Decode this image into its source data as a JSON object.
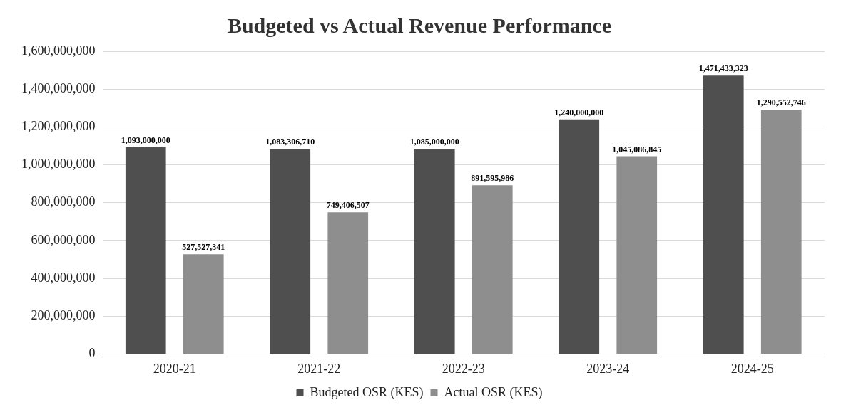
{
  "chart_data": {
    "type": "bar",
    "title": "Budgeted vs Actual Revenue Performance",
    "categories": [
      "2020-21",
      "2021-22",
      "2022-23",
      "2023-24",
      "2024-25"
    ],
    "series": [
      {
        "name": "Budgeted OSR (KES)",
        "color": "#4f4f4f",
        "values": [
          1093000000,
          1083306710,
          1085000000,
          1240000000,
          1471433323
        ],
        "value_labels": [
          "1,093,000,000",
          "1,083,306,710",
          "1,085,000,000",
          "1,240,000,000",
          "1,471,433,323"
        ]
      },
      {
        "name": "Actual OSR (KES)",
        "color": "#8e8e8e",
        "values": [
          527527341,
          749406507,
          891595986,
          1045086845,
          1290552746
        ],
        "value_labels": [
          "527,527,341",
          "749,406,507",
          "891,595,986",
          "1,045,086,845",
          "1,290,552,746"
        ]
      }
    ],
    "ylim": [
      0,
      1600000000
    ],
    "yticks": [
      {
        "value": 0,
        "label": "0"
      },
      {
        "value": 200000000,
        "label": "200,000,000"
      },
      {
        "value": 400000000,
        "label": "400,000,000"
      },
      {
        "value": 600000000,
        "label": "600,000,000"
      },
      {
        "value": 800000000,
        "label": "800,000,000"
      },
      {
        "value": 1000000000,
        "label": "1,000,000,000"
      },
      {
        "value": 1200000000,
        "label": "1,200,000,000"
      },
      {
        "value": 1400000000,
        "label": "1,400,000,000"
      },
      {
        "value": 1600000000,
        "label": "1,600,000,000"
      }
    ],
    "grid": "y",
    "legend": "bottom"
  }
}
